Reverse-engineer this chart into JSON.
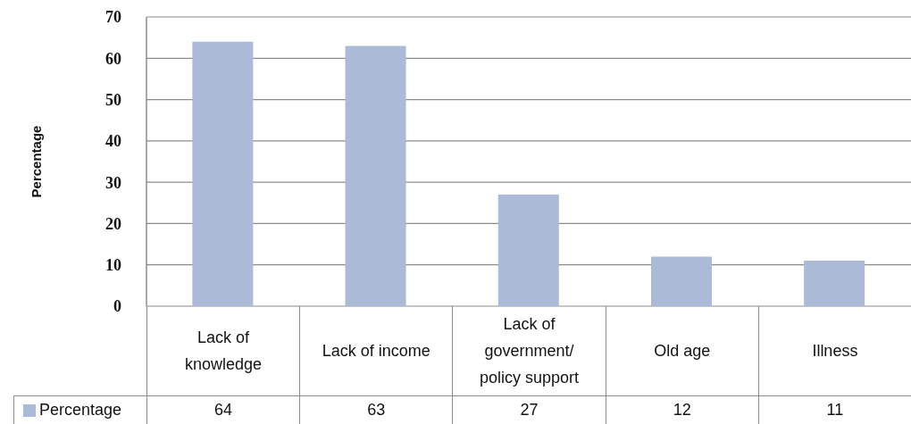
{
  "chart_data": {
    "type": "bar",
    "ylabel": "Percentage",
    "categories": [
      "Lack of knowledge",
      "Lack of income",
      "Lack of government/ policy support",
      "Old age",
      "Illness"
    ],
    "series": [
      {
        "name": "Percentage",
        "color": "#aabad7",
        "values": [
          64,
          63,
          27,
          12,
          11
        ]
      }
    ],
    "ylim": [
      0,
      70
    ],
    "yticks": [
      0,
      10,
      20,
      30,
      40,
      50,
      60,
      70
    ],
    "grid": "y",
    "legend": "bottom left",
    "data_labels": true
  }
}
